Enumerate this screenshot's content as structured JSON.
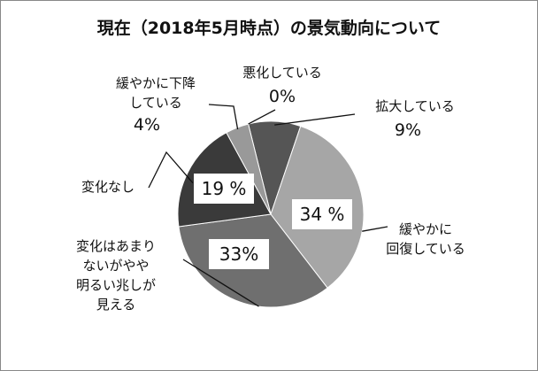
{
  "chart_data": {
    "type": "pie",
    "title": "現在（2018年5月時点）の景気動向について",
    "slices": [
      {
        "label": "悪化している",
        "label_lines": [
          "悪化している"
        ],
        "value": 0,
        "display": "0%",
        "color": "#6f6f6f"
      },
      {
        "label": "拡大している",
        "label_lines": [
          "拡大している"
        ],
        "value": 9,
        "display": "9%",
        "color": "#555555"
      },
      {
        "label": "緩やかに回復している",
        "label_lines": [
          "緩やかに",
          "回復している"
        ],
        "value": 34,
        "display": "34 %",
        "color": "#a6a6a6"
      },
      {
        "label": "変化はあまりないがやや明るい兆しが見える",
        "label_lines": [
          "変化はあまり",
          "ないがやや",
          "明るい兆しが",
          "見える"
        ],
        "value": 33,
        "display": "33%",
        "color": "#6f6f6f"
      },
      {
        "label": "変化なし",
        "label_lines": [
          "変化なし"
        ],
        "value": 19,
        "display": "19 %",
        "color": "#3a3a3a"
      },
      {
        "label": "緩やかに下降している",
        "label_lines": [
          "緩やかに下降",
          "している"
        ],
        "value": 4,
        "display": "4%",
        "color": "#999999"
      }
    ],
    "legend": "none"
  }
}
